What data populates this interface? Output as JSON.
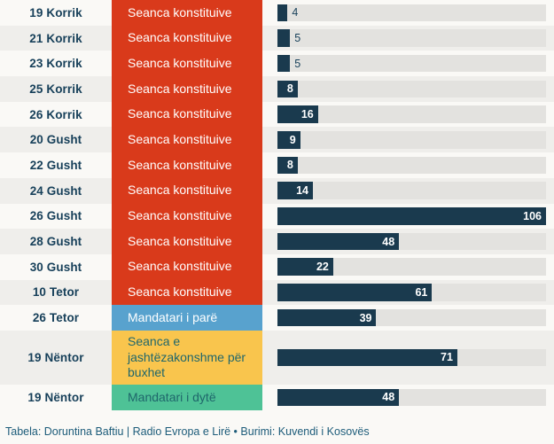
{
  "chart_data": {
    "type": "bar",
    "orientation": "horizontal",
    "title": "",
    "xlabel": "",
    "ylabel": "",
    "xlim": [
      0,
      106
    ],
    "grid": false,
    "value_labels_shown": true,
    "categories": [
      "19 Korrik",
      "21 Korrik",
      "23 Korrik",
      "25 Korrik",
      "26 Korrik",
      "20 Gusht",
      "22 Gusht",
      "24 Gusht",
      "26 Gusht",
      "28 Gusht",
      "30 Gusht",
      "10 Tetor",
      "26 Tetor",
      "19 Nëntor",
      "19 Nëntor"
    ],
    "values": [
      4,
      5,
      5,
      8,
      16,
      9,
      8,
      14,
      106,
      48,
      22,
      61,
      39,
      71,
      48
    ],
    "bar_group_labels": [
      "Seanca konstituive",
      "Seanca konstituive",
      "Seanca konstituive",
      "Seanca konstituive",
      "Seanca konstituive",
      "Seanca konstituive",
      "Seanca konstituive",
      "Seanca konstituive",
      "Seanca konstituive",
      "Seanca konstituive",
      "Seanca konstituive",
      "Seanca konstituive",
      "Mandatari i parë",
      "Seanca e jashtëzakonshme për buxhet",
      "Mandatari i dytë"
    ],
    "legend_entries": [
      "Seanca konstituive",
      "Mandatari i parë",
      "Seanca e jashtëzakonshme për buxhet",
      "Mandatari i dytë"
    ]
  },
  "rows": [
    {
      "date": "19 Korrik",
      "session": "Seanca konstituive",
      "key": "konstituive",
      "value": 4
    },
    {
      "date": "21 Korrik",
      "session": "Seanca konstituive",
      "key": "konstituive",
      "value": 5
    },
    {
      "date": "23 Korrik",
      "session": "Seanca konstituive",
      "key": "konstituive",
      "value": 5
    },
    {
      "date": "25 Korrik",
      "session": "Seanca konstituive",
      "key": "konstituive",
      "value": 8
    },
    {
      "date": "26 Korrik",
      "session": "Seanca konstituive",
      "key": "konstituive",
      "value": 16
    },
    {
      "date": "20 Gusht",
      "session": "Seanca konstituive",
      "key": "konstituive",
      "value": 9
    },
    {
      "date": "22 Gusht",
      "session": "Seanca konstituive",
      "key": "konstituive",
      "value": 8
    },
    {
      "date": "24 Gusht",
      "session": "Seanca konstituive",
      "key": "konstituive",
      "value": 14
    },
    {
      "date": "26 Gusht",
      "session": "Seanca konstituive",
      "key": "konstituive",
      "value": 106
    },
    {
      "date": "28 Gusht",
      "session": "Seanca konstituive",
      "key": "konstituive",
      "value": 48
    },
    {
      "date": "30 Gusht",
      "session": "Seanca konstituive",
      "key": "konstituive",
      "value": 22
    },
    {
      "date": "10 Tetor",
      "session": "Seanca konstituive",
      "key": "konstituive",
      "value": 61
    },
    {
      "date": "26 Tetor",
      "session": "Mandatari i parë",
      "key": "mandatari_pare",
      "value": 39
    },
    {
      "date": "19 Nëntor",
      "session": "Seanca e jashtëzakonshme për buxhet",
      "key": "jashtezakonshme",
      "value": 71,
      "tall": true
    },
    {
      "date": "19 Nëntor",
      "session": "Mandatari i dytë",
      "key": "mandatari_dyte",
      "value": 48
    }
  ],
  "sessions": {
    "konstituive": {
      "bg": "#d93a1b",
      "fg": "#ffffff"
    },
    "mandatari_pare": {
      "bg": "#58a2ce",
      "fg": "#ffffff"
    },
    "jashtezakonshme": {
      "bg": "#f9c54d",
      "fg": "#1f666b"
    },
    "mandatari_dyte": {
      "bg": "#4ec296",
      "fg": "#1f666b"
    }
  },
  "colors": {
    "bar": "#1a3a4e",
    "track": "#e3e2df",
    "row_odd": "#faf9f6",
    "row_even": "#efeeeb",
    "date_text": "#163f59",
    "value_text_out": "#163f59",
    "value_text_in": "#ffffff",
    "footer_text": "#1d5c7a"
  },
  "footer": {
    "credit": "Tabela: Doruntina Baftiu | Radio Evropa e Lirë • Burimi: Kuvendi i Kosovës"
  }
}
